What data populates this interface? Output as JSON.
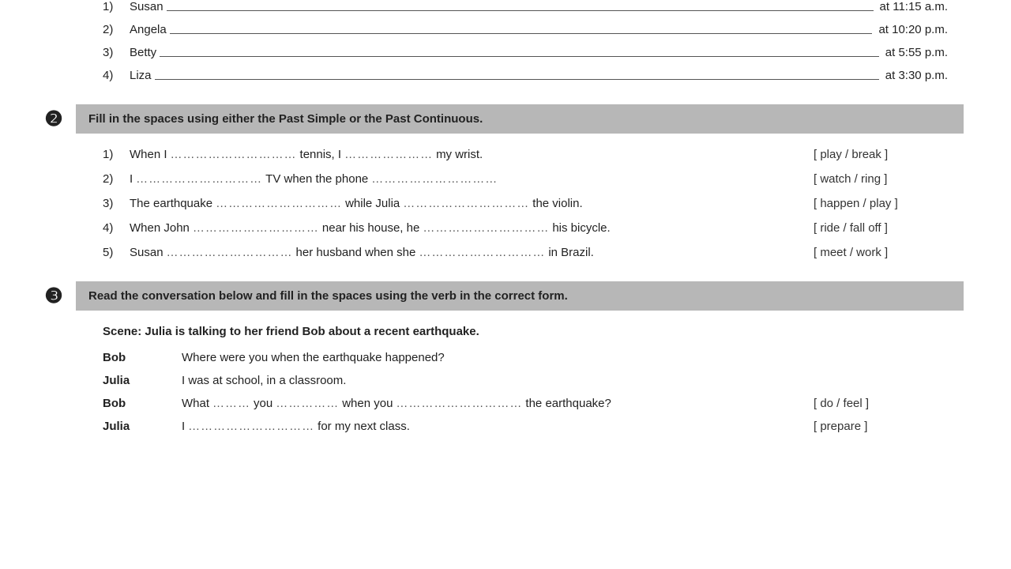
{
  "exercise1": {
    "items": [
      {
        "num": "1)",
        "name": "Susan",
        "time": "at 11:15 a.m."
      },
      {
        "num": "2)",
        "name": "Angela",
        "time": "at 10:20 p.m."
      },
      {
        "num": "3)",
        "name": "Betty",
        "time": "at 5:55 p.m."
      },
      {
        "num": "4)",
        "name": "Liza",
        "time": "at 3:30 p.m."
      }
    ]
  },
  "exercise2": {
    "bullet": "❷",
    "title": "Fill in the spaces using either the Past Simple or the Past Continuous.",
    "items": [
      {
        "num": "1)",
        "parts": [
          "When I",
          "…………………………",
          "tennis, I",
          "…………………",
          "my wrist."
        ],
        "hint": "[ play / break ]"
      },
      {
        "num": "2)",
        "parts": [
          "I",
          "…………………………",
          "TV when the phone",
          "…………………………"
        ],
        "hint": "[ watch / ring ]"
      },
      {
        "num": "3)",
        "parts": [
          "The earthquake",
          "…………………………",
          "while Julia",
          "…………………………",
          "the violin."
        ],
        "hint": "[ happen / play ]"
      },
      {
        "num": "4)",
        "parts": [
          "When John",
          "…………………………",
          "near his house, he",
          "…………………………",
          "his bicycle."
        ],
        "hint": "[ ride / fall off ]"
      },
      {
        "num": "5)",
        "parts": [
          "Susan",
          "…………………………",
          "her husband when she",
          "…………………………",
          "in Brazil."
        ],
        "hint": "[ meet / work ]"
      }
    ]
  },
  "exercise3": {
    "bullet": "❸",
    "title": "Read the conversation below and fill in the spaces using the verb in the correct form.",
    "scene": "Scene: Julia is talking to her friend Bob about a recent earthquake.",
    "conversation": [
      {
        "speaker": "Bob",
        "parts": [
          "Where were you when the earthquake happened?"
        ],
        "hint": ""
      },
      {
        "speaker": "Julia",
        "parts": [
          "I was at school, in a classroom."
        ],
        "hint": ""
      },
      {
        "speaker": "Bob",
        "parts": [
          "What",
          "………",
          "you",
          "……………",
          "when you",
          "…………………………",
          "the earthquake?"
        ],
        "hint": "[ do / feel ]"
      },
      {
        "speaker": "Julia",
        "parts": [
          "I",
          "…………………………",
          "for my next class."
        ],
        "hint": "[ prepare ]"
      }
    ]
  }
}
